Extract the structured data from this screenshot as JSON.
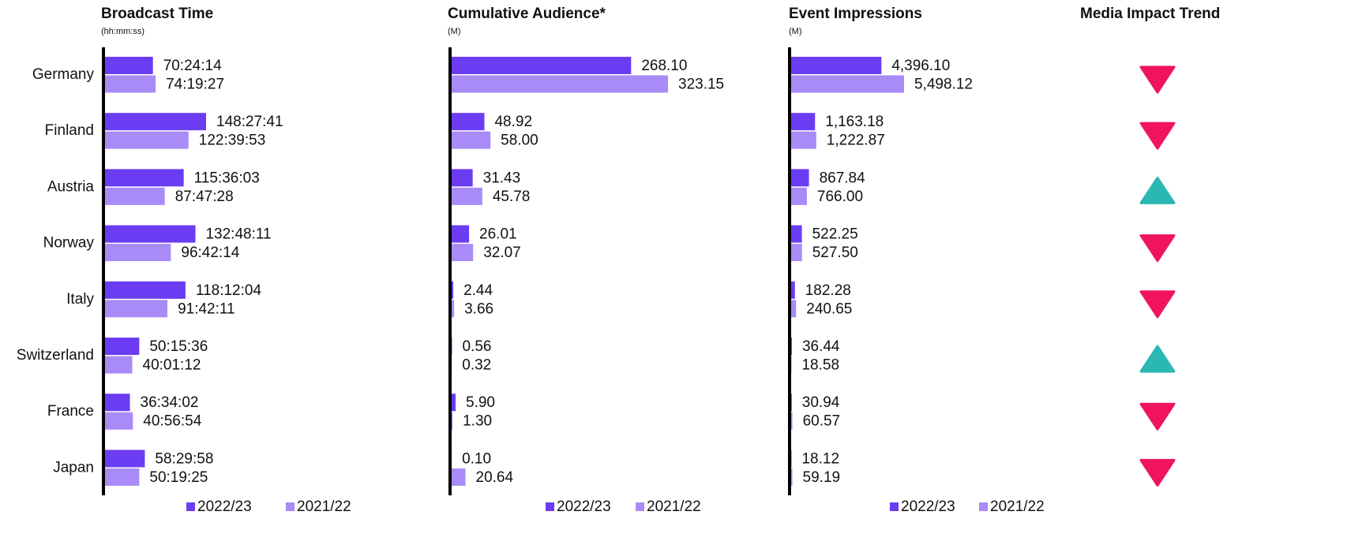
{
  "chart_data": [
    {
      "type": "bar",
      "title": "Broadcast Time",
      "subtitle": "(hh:mm:ss)",
      "categories": [
        "Germany",
        "Finland",
        "Austria",
        "Norway",
        "Italy",
        "Switzerland",
        "France",
        "Japan"
      ],
      "series": [
        {
          "name": "2022/23",
          "color": "#6b3cf2",
          "values": [
            253454,
            534461,
            416163,
            478091,
            425524,
            180936,
            131642,
            210598
          ],
          "value_labels": [
            "70:24:14",
            "148:27:41",
            "115:36:03",
            "132:48:11",
            "118:12:04",
            "50:15:36",
            "36:34:02",
            "58:29:58"
          ]
        },
        {
          "name": "2021/22",
          "color": "#a98bf8",
          "values": [
            267567,
            441593,
            316048,
            348134,
            330131,
            144072,
            147414,
            181165
          ],
          "value_labels": [
            "74:19:27",
            "122:39:53",
            "87:47:28",
            "96:42:14",
            "91:42:11",
            "40:01:12",
            "40:56:54",
            "50:19:25"
          ]
        }
      ]
    },
    {
      "type": "bar",
      "title": "Cumulative Audience*",
      "subtitle": "(M)",
      "series": [
        {
          "name": "2022/23",
          "color": "#6b3cf2",
          "values": [
            268.1,
            48.92,
            31.43,
            26.01,
            2.44,
            0.56,
            5.9,
            0.1
          ],
          "value_labels": [
            "268.10",
            "48.92",
            "31.43",
            "26.01",
            "2.44",
            "0.56",
            "5.90",
            "0.10"
          ]
        },
        {
          "name": "2021/22",
          "color": "#a98bf8",
          "values": [
            323.15,
            58,
            45.78,
            32.07,
            3.66,
            0.32,
            1.3,
            20.64
          ],
          "value_labels": [
            "323.15",
            "58.00",
            "45.78",
            "32.07",
            "3.66",
            "0.32",
            "1.30",
            "20.64"
          ]
        }
      ]
    },
    {
      "type": "bar",
      "title": "Event Impressions",
      "subtitle": "(M)",
      "series": [
        {
          "name": "2022/23",
          "color": "#6b3cf2",
          "values": [
            4396.1,
            1163.18,
            867.84,
            522.25,
            182.28,
            36.44,
            30.94,
            18.12
          ],
          "value_labels": [
            "4,396.10",
            "1,163.18",
            "867.84",
            "522.25",
            "182.28",
            "36.44",
            "30.94",
            "18.12"
          ]
        },
        {
          "name": "2021/22",
          "color": "#a98bf8",
          "values": [
            5498.12,
            1222.87,
            766,
            527.5,
            240.65,
            18.58,
            60.57,
            59.19
          ],
          "value_labels": [
            "5,498.12",
            "1,222.87",
            "766.00",
            "527.50",
            "240.65",
            "18.58",
            "60.57",
            "59.19"
          ]
        }
      ]
    },
    {
      "type": "trend",
      "title": "Media Impact Trend",
      "directions": [
        "down",
        "down",
        "up",
        "down",
        "down",
        "up",
        "down",
        "down"
      ],
      "up_color": "#2bb7b3",
      "down_color": "#f0145c"
    }
  ]
}
